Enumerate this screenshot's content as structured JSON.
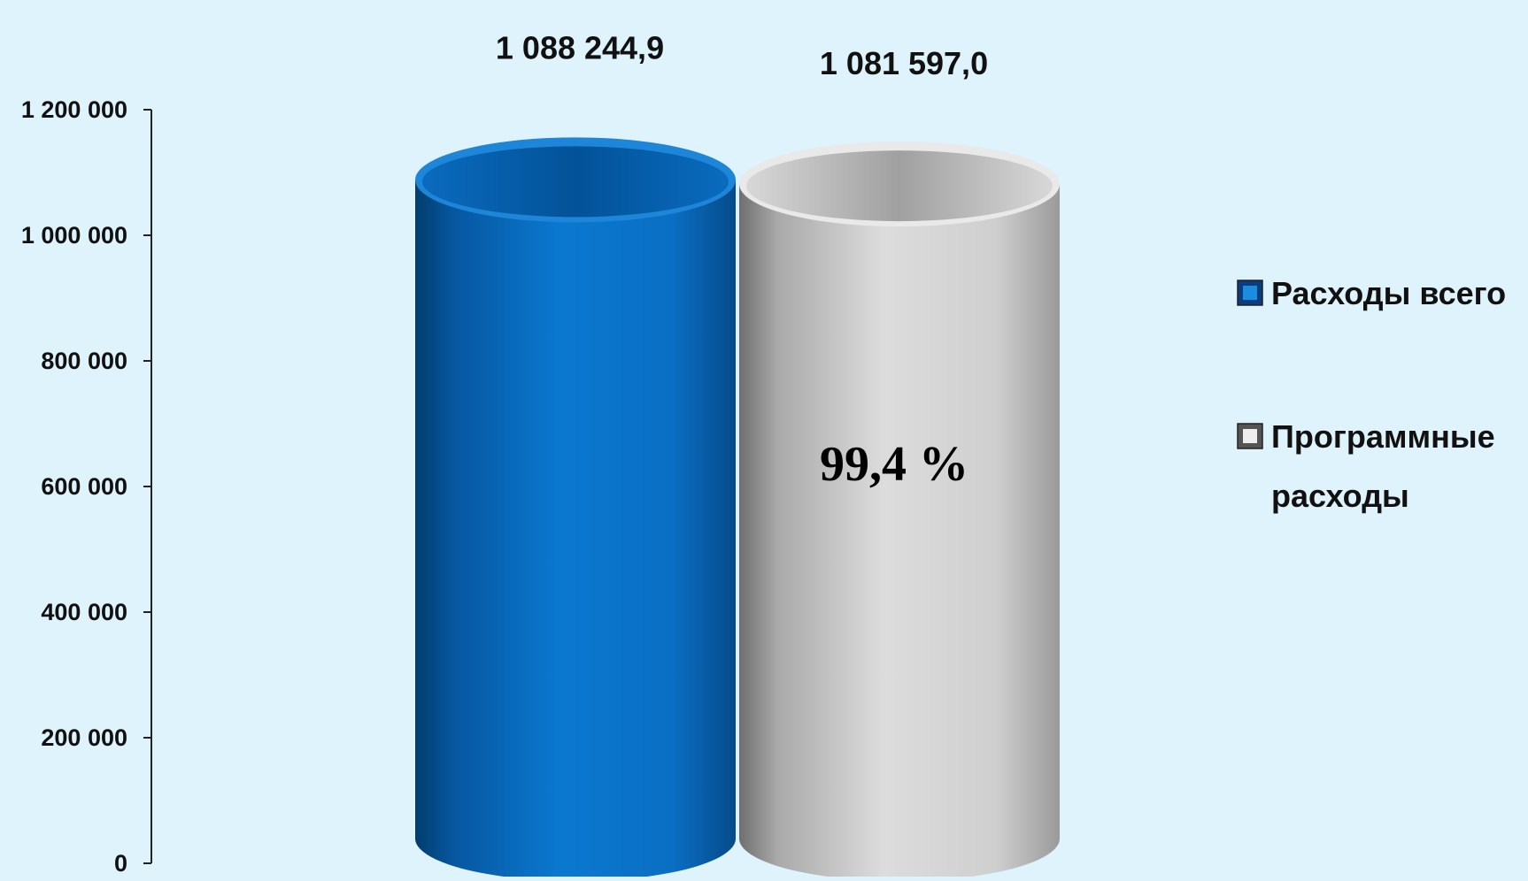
{
  "colors": {
    "background": "#def3fb",
    "series_1": "#0a6fc4",
    "series_2": "#c9c9c9",
    "text": "#111111"
  },
  "annotation": "99,4 %",
  "chart_data": {
    "type": "bar",
    "style": "3d-cylinder",
    "title": "",
    "xlabel": "",
    "ylabel": "",
    "ylim": [
      0,
      1200000
    ],
    "y_ticks": [
      0,
      200000,
      400000,
      600000,
      800000,
      1000000,
      1200000
    ],
    "y_tick_labels": [
      "0",
      "200 000",
      "400 000",
      "600 000",
      "800 000",
      "1 000 000",
      "1 200 000"
    ],
    "grid": false,
    "legend_position": "right",
    "series": [
      {
        "name": "Расходы всего",
        "value": 1088244.9,
        "label": "1 088 244,9",
        "color": "#0a6fc4"
      },
      {
        "name": "Программные расходы",
        "value": 1081597.0,
        "label": "1 081 597,0",
        "color": "#c9c9c9"
      }
    ],
    "legend": [
      {
        "lines": [
          "Расходы всего"
        ],
        "icon": "blue-square-icon"
      },
      {
        "lines": [
          "Программные",
          "расходы"
        ],
        "icon": "gray-square-icon"
      }
    ]
  }
}
